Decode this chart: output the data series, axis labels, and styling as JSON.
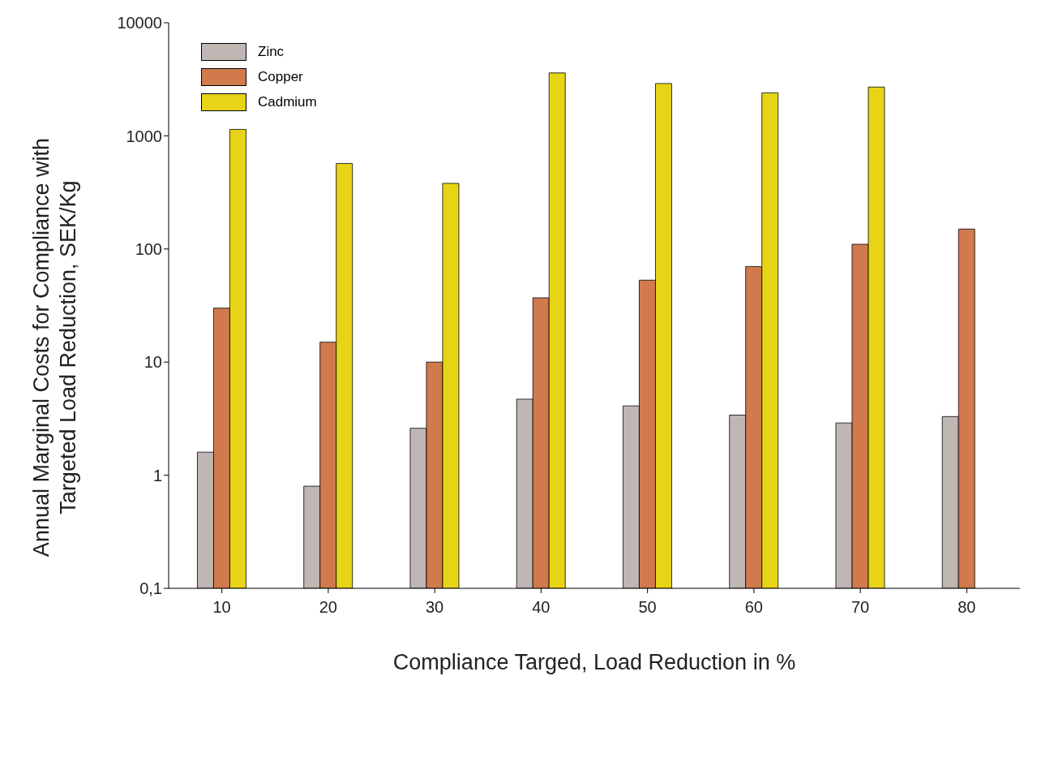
{
  "chart_data": {
    "type": "bar",
    "xlabel": "Compliance Targed, Load Reduction in %",
    "ylabel": "Annual Marginal Costs for Compliance with Targeted Load Reduction, SEK/Kg",
    "categories": [
      "10",
      "20",
      "30",
      "40",
      "50",
      "60",
      "70",
      "80"
    ],
    "series": [
      {
        "name": "Zinc",
        "color": "#c0b6b3",
        "values": [
          1.6,
          0.8,
          2.6,
          4.7,
          4.1,
          3.4,
          2.9,
          3.3
        ]
      },
      {
        "name": "Copper",
        "color": "#d07a4e",
        "values": [
          30,
          15,
          10,
          37,
          53,
          70,
          110,
          150
        ]
      },
      {
        "name": "Cadmium",
        "color": "#e8d416",
        "values": [
          1140,
          570,
          380,
          3600,
          2900,
          2400,
          2700,
          null
        ]
      }
    ],
    "log": "y",
    "ylim": [
      0.1,
      10000
    ],
    "yticks": [
      {
        "value": 0.1,
        "label": "0,1"
      },
      1,
      10,
      100,
      1000,
      10000
    ],
    "legend": "top left"
  }
}
